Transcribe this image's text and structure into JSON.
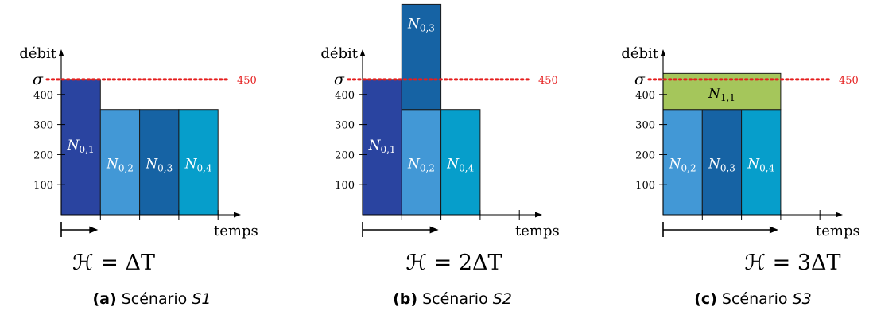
{
  "panels": [
    {
      "id": "a",
      "caption_letter": "(a)",
      "caption_text": "Scénario",
      "caption_scenario": "S1",
      "horizon_label": "ℋ = ΔT",
      "horizon_units": 1,
      "blocks": [
        {
          "label": "N",
          "sub": "0,1",
          "start": 0,
          "duration": 1,
          "y0": 0,
          "y1": 450,
          "color": "#2a44a0"
        },
        {
          "label": "N",
          "sub": "0,2",
          "start": 1,
          "duration": 1,
          "y0": 0,
          "y1": 350,
          "color": "#4298d6"
        },
        {
          "label": "N",
          "sub": "0,3",
          "start": 2,
          "duration": 1,
          "y0": 0,
          "y1": 350,
          "color": "#1663a4"
        },
        {
          "label": "N",
          "sub": "0,4",
          "start": 3,
          "duration": 1,
          "y0": 0,
          "y1": 350,
          "color": "#069ecb"
        }
      ],
      "x_ticks": [
        1,
        2,
        3,
        4
      ]
    },
    {
      "id": "b",
      "caption_letter": "(b)",
      "caption_text": "Scénario",
      "caption_scenario": "S2",
      "horizon_label": "ℋ = 2ΔT",
      "horizon_units": 2,
      "blocks": [
        {
          "label": "N",
          "sub": "0,1",
          "start": 0,
          "duration": 1,
          "y0": 0,
          "y1": 450,
          "color": "#2a44a0"
        },
        {
          "label": "N",
          "sub": "0,2",
          "start": 1,
          "duration": 1,
          "y0": 0,
          "y1": 350,
          "color": "#4298d6"
        },
        {
          "label": "N",
          "sub": "0,3",
          "start": 1,
          "duration": 1,
          "y0": 350,
          "y1": 700,
          "color": "#1663a4"
        },
        {
          "label": "N",
          "sub": "0,4",
          "start": 2,
          "duration": 1,
          "y0": 0,
          "y1": 350,
          "color": "#069ecb"
        }
      ],
      "x_ticks": [
        1,
        2,
        3,
        4
      ]
    },
    {
      "id": "c",
      "caption_letter": "(c)",
      "caption_text": "Scénario",
      "caption_scenario": "S3",
      "horizon_label": "ℋ = 3ΔT",
      "horizon_units": 3,
      "blocks": [
        {
          "label": "N",
          "sub": "0,2",
          "start": 0,
          "duration": 1,
          "y0": 0,
          "y1": 350,
          "color": "#4298d6"
        },
        {
          "label": "N",
          "sub": "0,3",
          "start": 1,
          "duration": 1,
          "y0": 0,
          "y1": 350,
          "color": "#1663a4"
        },
        {
          "label": "N",
          "sub": "0,4",
          "start": 2,
          "duration": 1,
          "y0": 0,
          "y1": 350,
          "color": "#069ecb"
        },
        {
          "label": "N",
          "sub": "1,1",
          "start": 0,
          "duration": 3,
          "y0": 350,
          "y1": 470,
          "color": "#a5c65b"
        }
      ],
      "x_ticks": [
        1,
        2,
        3,
        4
      ]
    }
  ],
  "axes": {
    "y_title": "débit",
    "x_title": "temps",
    "y_ticks": [
      100,
      200,
      300,
      400
    ]
  },
  "threshold": {
    "symbol": "σ",
    "value": 450,
    "value_label": "450",
    "color": "#e51e1e"
  },
  "label_colors": {
    "on_dark": "#ffffff",
    "on_light": "#000000"
  }
}
